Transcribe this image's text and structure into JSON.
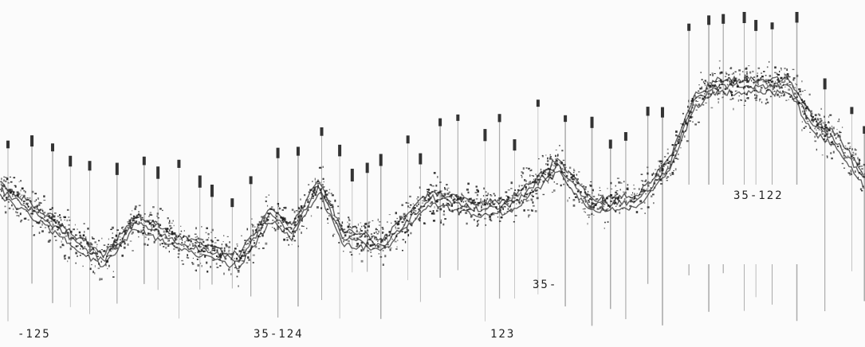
{
  "labels": {
    "line_125": "-125",
    "line_124": "35-124",
    "line_123": "123",
    "line_35": "35-",
    "line_122": "35-122"
  }
}
